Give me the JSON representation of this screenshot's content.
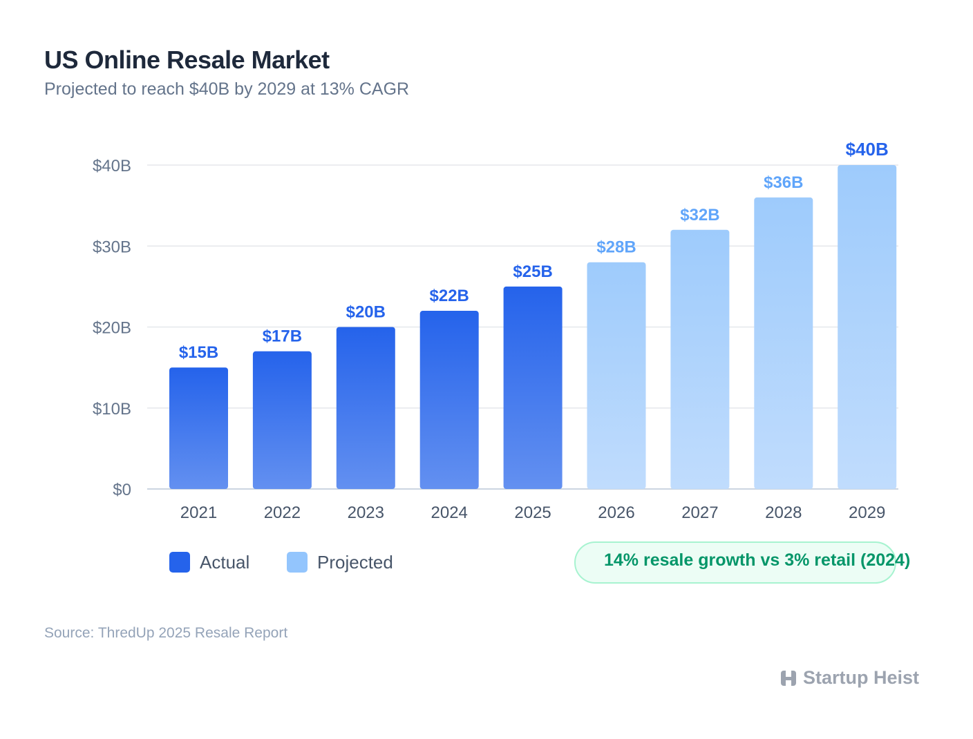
{
  "header": {
    "title": "US Online Resale Market",
    "subtitle": "Projected to reach $40B by 2029 at 13% CAGR"
  },
  "chart_data": {
    "type": "bar",
    "categories": [
      "2021",
      "2022",
      "2023",
      "2024",
      "2025",
      "2026",
      "2027",
      "2028",
      "2029"
    ],
    "values": [
      15,
      17,
      20,
      22,
      25,
      28,
      32,
      36,
      40
    ],
    "data_labels": [
      "$15B",
      "$17B",
      "$20B",
      "$22B",
      "$25B",
      "$28B",
      "$32B",
      "$36B",
      "$40B"
    ],
    "status": [
      "Actual",
      "Actual",
      "Actual",
      "Actual",
      "Actual",
      "Projected",
      "Projected",
      "Projected",
      "Projected"
    ],
    "yticks": [
      0,
      10,
      20,
      30,
      40
    ],
    "ytick_labels": [
      "$0",
      "$10B",
      "$20B",
      "$30B",
      "$40B"
    ],
    "ylim": [
      0,
      40
    ],
    "grid": true,
    "legend": [
      {
        "name": "Actual",
        "color": "#2563eb"
      },
      {
        "name": "Projected",
        "color": "#93c5fd"
      }
    ],
    "legend_placement": "bottom-left",
    "colors": {
      "actual_bar": "#2563eb",
      "projected_bar": "#93c5fd",
      "actual_label": "#2563eb",
      "projected_label": "#60a5fa",
      "highlight_label": "#2563eb"
    }
  },
  "callout": {
    "text": "14% resale growth vs 3% retail (2024)",
    "color": "#059669"
  },
  "footer": {
    "source": "Source: ThredUp 2025 Resale Report",
    "brand": "Startup Heist"
  }
}
